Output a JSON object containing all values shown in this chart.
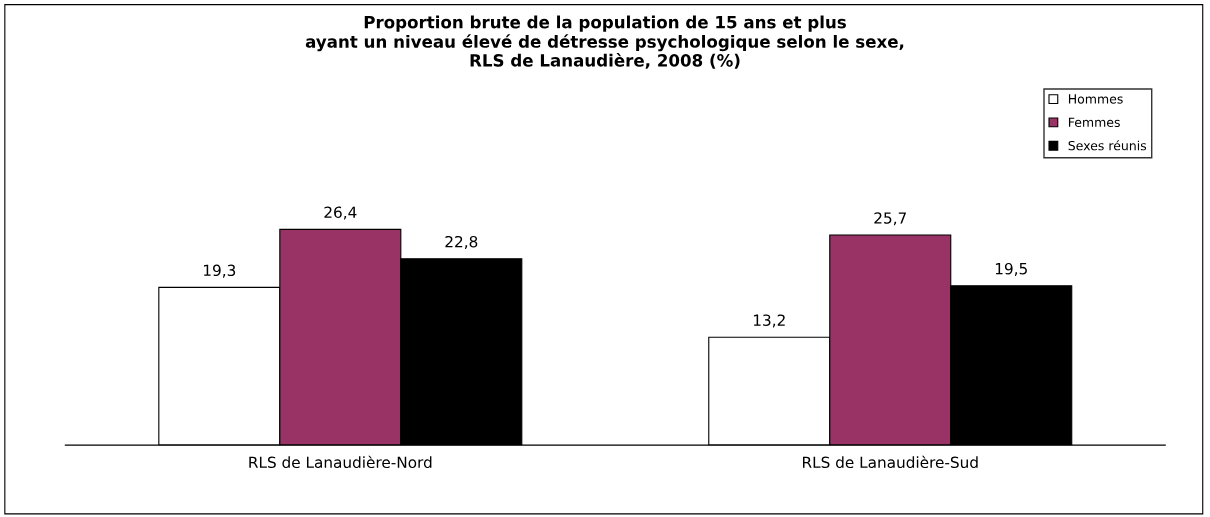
{
  "chart_data": {
    "type": "bar",
    "title": "Proportion brute de la population de 15 ans et plus\nayant un niveau élevé de détresse psychologique selon le sexe,\nRLS de Lanaudière, 2008 (%)",
    "categories": [
      "RLS de Lanaudière-Nord",
      "RLS de Lanaudière-Sud"
    ],
    "series": [
      {
        "name": "Hommes",
        "color": "#ffffff",
        "values": [
          19.3,
          13.2
        ],
        "value_labels": [
          "19,3",
          "13,2"
        ]
      },
      {
        "name": "Femmes",
        "color": "#993366",
        "values": [
          26.4,
          25.7
        ],
        "value_labels": [
          "26,4",
          "25,7"
        ]
      },
      {
        "name": "Sexes réunis",
        "color": "#000000",
        "values": [
          22.8,
          19.5
        ],
        "value_labels": [
          "22,8",
          "19,5"
        ]
      }
    ],
    "legend": "top right",
    "grid": false
  }
}
